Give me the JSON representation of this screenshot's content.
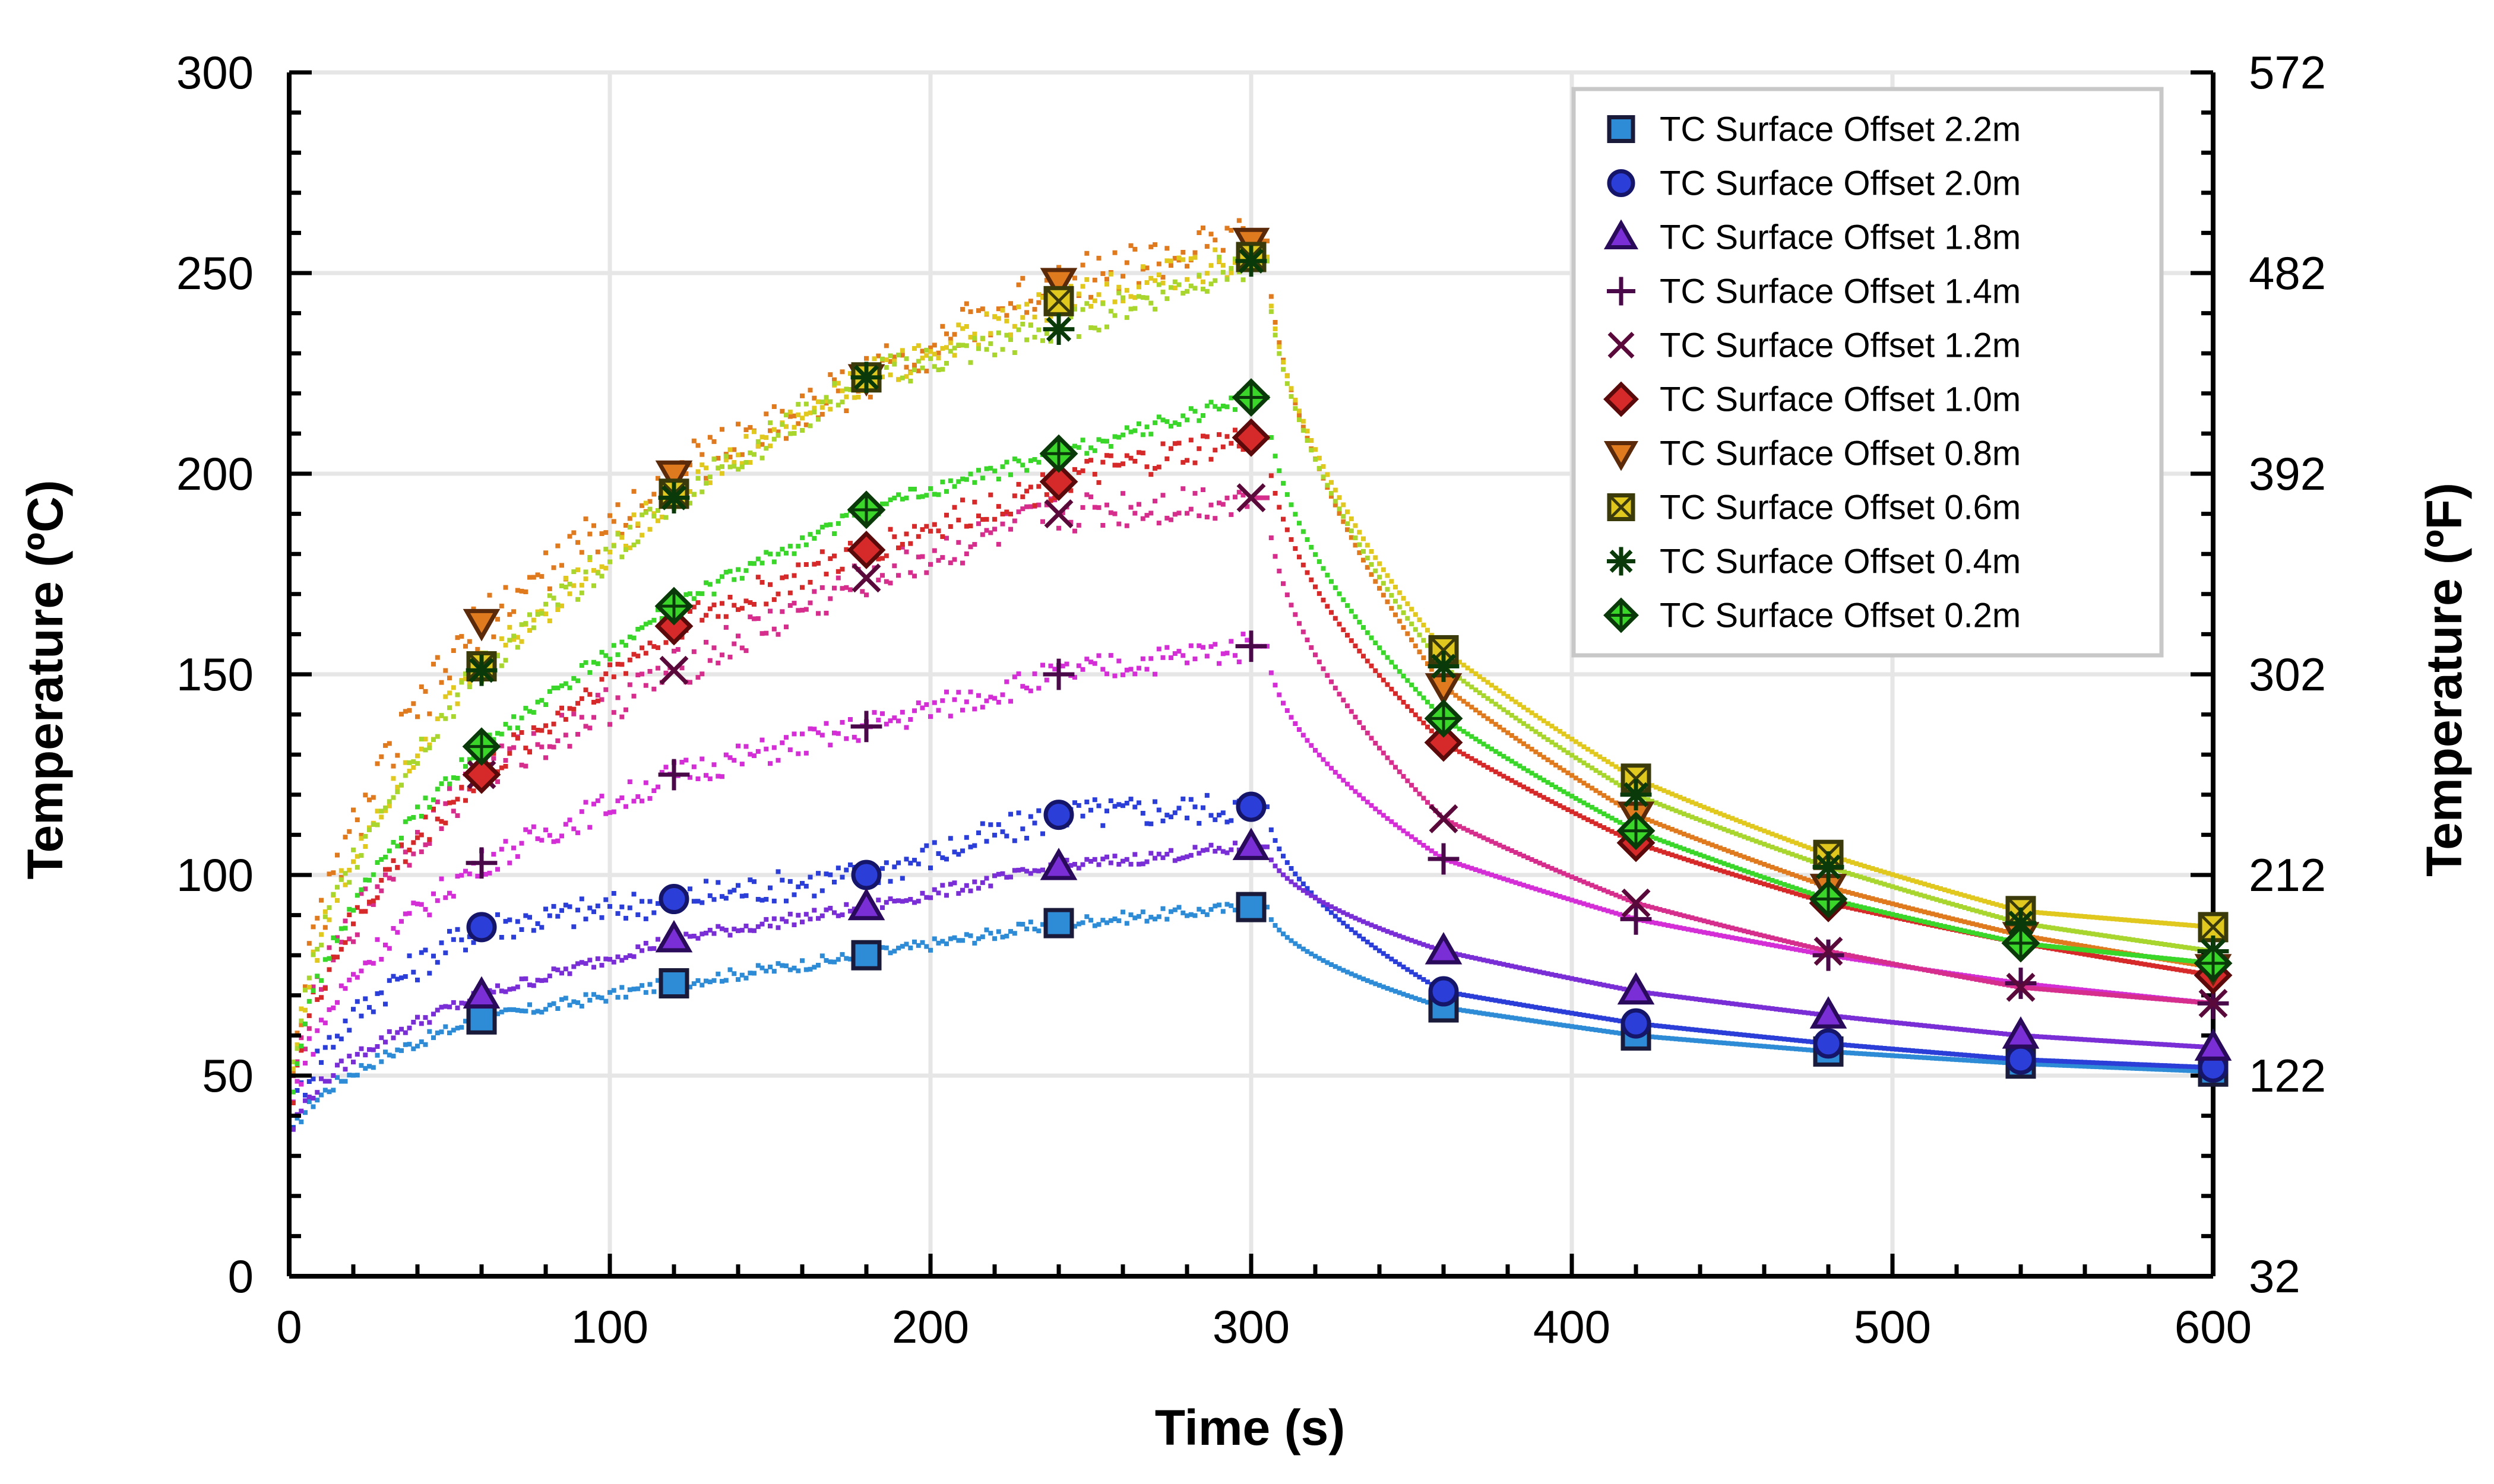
{
  "chart_data": {
    "type": "scatter",
    "xlabel": "Time (s)",
    "ylabel": "Temperature (ºC)",
    "y2label": "Temperature (ºF)",
    "xlim": [
      0,
      600
    ],
    "ylim": [
      0,
      300
    ],
    "y2lim": [
      32,
      572
    ],
    "x_ticks": [
      "0",
      "100",
      "200",
      "300",
      "400",
      "500",
      "600"
    ],
    "y_ticks": [
      "0",
      "50",
      "100",
      "150",
      "200",
      "250",
      "300"
    ],
    "y2_ticks": [
      "32",
      "122",
      "212",
      "302",
      "392",
      "482",
      "572"
    ],
    "grid": true,
    "legend_position": "top-right",
    "marker_x": [
      60,
      120,
      180,
      240,
      300,
      360,
      420,
      480,
      540,
      600
    ],
    "series": [
      {
        "name": "TC Surface Offset 2.2m",
        "color": "#2e8bd6",
        "marker": "square",
        "values": [
          64,
          73,
          80,
          88,
          92,
          67,
          60,
          56,
          53,
          51
        ]
      },
      {
        "name": "TC Surface Offset 2.0m",
        "color": "#2b3ed8",
        "marker": "circle",
        "values": [
          87,
          94,
          100,
          115,
          117,
          71,
          63,
          58,
          54,
          52
        ]
      },
      {
        "name": "TC Surface Offset 1.8m",
        "color": "#7a2fd6",
        "marker": "triangle-up",
        "values": [
          70,
          84,
          92,
          102,
          107,
          81,
          71,
          65,
          60,
          57
        ]
      },
      {
        "name": "TC Surface Offset 1.4m",
        "color": "#d42fd6",
        "marker": "plus",
        "values": [
          103,
          125,
          137,
          150,
          157,
          104,
          89,
          80,
          73,
          68
        ]
      },
      {
        "name": "TC Surface Offset 1.2m",
        "color": "#d62e8c",
        "marker": "x",
        "values": [
          125,
          151,
          174,
          190,
          194,
          114,
          93,
          81,
          72,
          68
        ]
      },
      {
        "name": "TC Surface Offset 1.0m",
        "color": "#d62a2a",
        "marker": "diamond",
        "values": [
          125,
          162,
          181,
          198,
          209,
          133,
          108,
          93,
          83,
          75
        ]
      },
      {
        "name": "TC Surface Offset 0.8m",
        "color": "#e07a1f",
        "marker": "triangle-down",
        "values": [
          163,
          200,
          224,
          248,
          258,
          147,
          115,
          97,
          85,
          77
        ]
      },
      {
        "name": "TC Surface Offset 0.6m",
        "color": "#e0c81f",
        "marker": "boxx",
        "values": [
          152,
          195,
          224,
          243,
          254,
          156,
          124,
          105,
          91,
          87
        ]
      },
      {
        "name": "TC Surface Offset 0.4m",
        "color": "#a8d62e",
        "marker": "asterisk",
        "values": [
          151,
          194,
          224,
          236,
          253,
          152,
          120,
          102,
          88,
          81
        ]
      },
      {
        "name": "TC Surface Offset 0.2m",
        "color": "#3ad62a",
        "marker": "diamond-plus",
        "values": [
          132,
          167,
          191,
          205,
          219,
          139,
          111,
          94,
          83,
          78
        ]
      }
    ]
  }
}
